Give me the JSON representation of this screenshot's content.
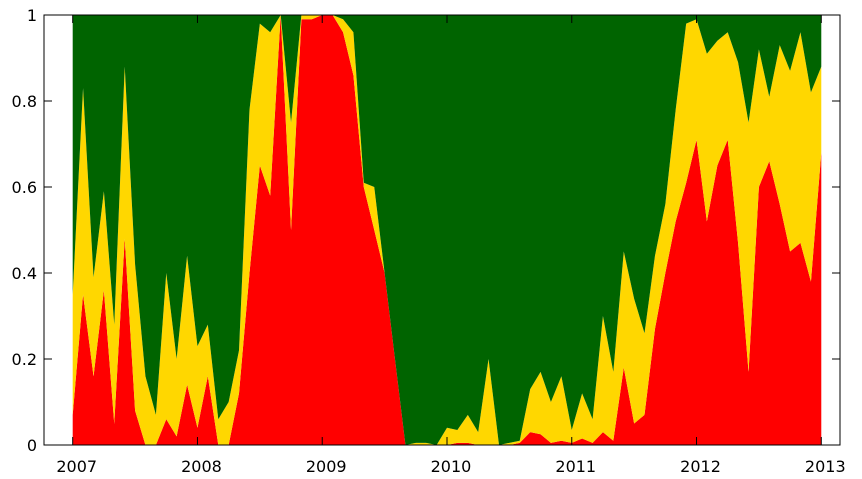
{
  "chart_data": {
    "type": "stacked_area",
    "x": [
      2007,
      2007.083,
      2007.167,
      2007.25,
      2007.333,
      2007.417,
      2007.5,
      2007.583,
      2007.667,
      2007.75,
      2007.833,
      2007.917,
      2008,
      2008.083,
      2008.167,
      2008.25,
      2008.333,
      2008.417,
      2008.5,
      2008.583,
      2008.667,
      2008.75,
      2008.833,
      2008.917,
      2009,
      2009.083,
      2009.167,
      2009.25,
      2009.333,
      2009.417,
      2009.5,
      2009.583,
      2009.667,
      2009.75,
      2009.833,
      2009.917,
      2010,
      2010.083,
      2010.167,
      2010.25,
      2010.333,
      2010.417,
      2010.5,
      2010.583,
      2010.667,
      2010.75,
      2010.833,
      2010.917,
      2011,
      2011.083,
      2011.167,
      2011.25,
      2011.333,
      2011.417,
      2011.5,
      2011.583,
      2011.667,
      2011.75,
      2011.833,
      2011.917,
      2012,
      2012.083,
      2012.167,
      2012.25,
      2012.333,
      2012.417,
      2012.5,
      2012.583,
      2012.667,
      2012.75,
      2012.833,
      2012.917,
      2013
    ],
    "series": [
      {
        "color": "#ff0000",
        "values": [
          0.07,
          0.35,
          0.16,
          0.36,
          0.05,
          0.48,
          0.08,
          0,
          0,
          0.06,
          0.02,
          0.14,
          0.04,
          0.16,
          0,
          0,
          0.12,
          0.4,
          0.65,
          0.58,
          1,
          0.5,
          0.99,
          0.99,
          1,
          1,
          0.96,
          0.86,
          0.6,
          0.5,
          0.4,
          0.2,
          0,
          0,
          0,
          0,
          0,
          0.005,
          0.005,
          0,
          0,
          0,
          0,
          0.005,
          0.03,
          0.025,
          0.005,
          0.01,
          0.005,
          0.015,
          0.005,
          0.03,
          0.01,
          0.18,
          0.05,
          0.07,
          0.27,
          0.4,
          0.52,
          0.61,
          0.71,
          0.52,
          0.65,
          0.71,
          0.47,
          0.17,
          0.6,
          0.66,
          0.56,
          0.45,
          0.47,
          0.38,
          0.68
        ]
      },
      {
        "color": "#ffd700",
        "values": [
          0.28,
          0.48,
          0.23,
          0.23,
          0.23,
          0.4,
          0.34,
          0.16,
          0.07,
          0.34,
          0.18,
          0.3,
          0.19,
          0.12,
          0.06,
          0.1,
          0.1,
          0.38,
          0.33,
          0.38,
          0,
          0.25,
          0.01,
          0.01,
          0,
          0,
          0.03,
          0.1,
          0.01,
          0.1,
          0,
          0,
          0,
          0.005,
          0.005,
          0,
          0.04,
          0.03,
          0.065,
          0.03,
          0.2,
          0,
          0.005,
          0.005,
          0.1,
          0.145,
          0.095,
          0.15,
          0.03,
          0.105,
          0.055,
          0.27,
          0.16,
          0.27,
          0.29,
          0.19,
          0.17,
          0.16,
          0.26,
          0.37,
          0.28,
          0.39,
          0.29,
          0.25,
          0.42,
          0.58,
          0.32,
          0.15,
          0.37,
          0.42,
          0.49,
          0.44,
          0.2
        ]
      },
      {
        "color": "#006400",
        "values": [
          0.65,
          0.17,
          0.61,
          0.41,
          0.72,
          0.12,
          0.58,
          0.84,
          0.93,
          0.6,
          0.8,
          0.56,
          0.77,
          0.72,
          0.94,
          0.9,
          0.78,
          0.22,
          0.02,
          0.04,
          0,
          0.25,
          0,
          0,
          0,
          0,
          0.01,
          0.04,
          0.39,
          0.4,
          0.6,
          0.8,
          1,
          0.995,
          0.995,
          1,
          0.96,
          0.965,
          0.93,
          0.97,
          0.8,
          1,
          0.995,
          0.99,
          0.87,
          0.83,
          0.9,
          0.84,
          0.965,
          0.88,
          0.94,
          0.7,
          0.83,
          0.55,
          0.66,
          0.74,
          0.56,
          0.44,
          0.22,
          0.02,
          0.01,
          0.09,
          0.06,
          0.04,
          0.11,
          0.25,
          0.08,
          0.19,
          0.07,
          0.13,
          0.04,
          0.18,
          0.12
        ]
      }
    ],
    "xlim": [
      2006.77,
      2013.15
    ],
    "xticks": [
      2007,
      2008,
      2009,
      2010,
      2011,
      2012,
      2013
    ],
    "ylim": [
      0,
      1
    ],
    "yticks": [
      0,
      0.2,
      0.4,
      0.6,
      0.8,
      1
    ]
  }
}
